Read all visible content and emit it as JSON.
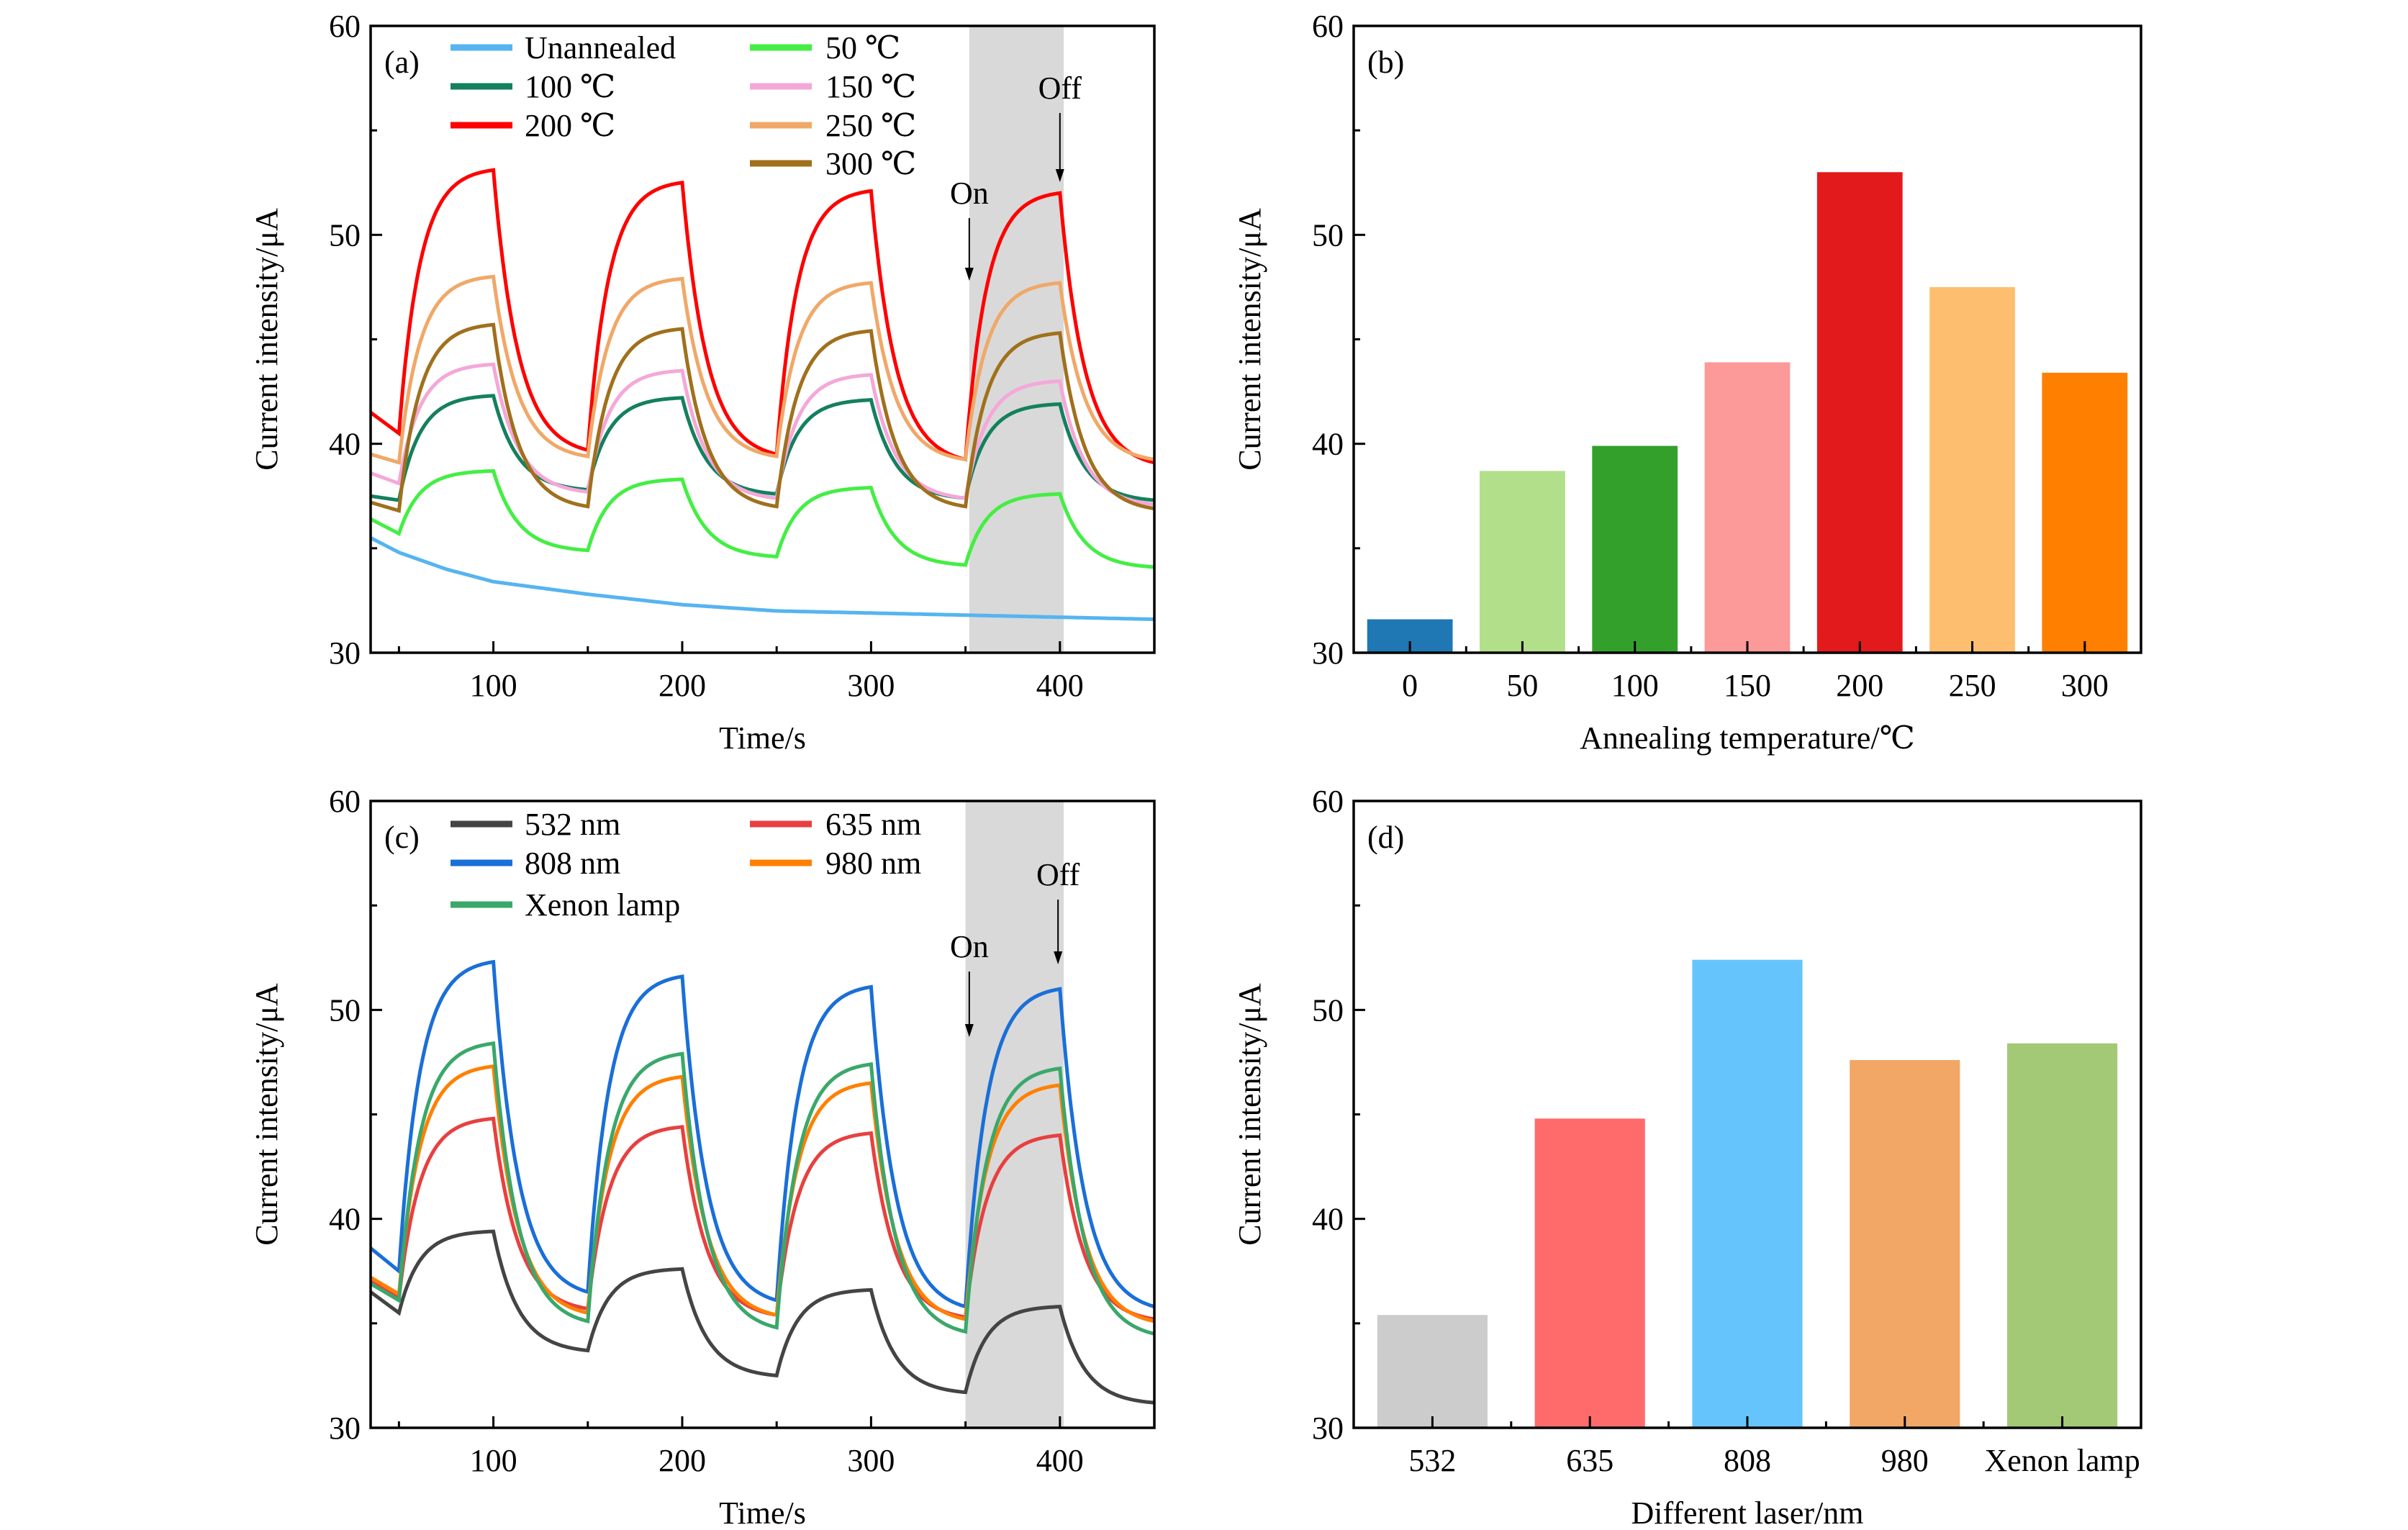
{
  "chart_data": [
    {
      "panel_label": "(a)",
      "type": "line",
      "xlabel": "Time/s",
      "ylabel": "Current intensity/μA",
      "xlim": [
        35,
        450
      ],
      "ylim": [
        30,
        60
      ],
      "xticks": [
        100,
        200,
        300,
        400
      ],
      "yticks": [
        30,
        40,
        50,
        60
      ],
      "grid": false,
      "legend_placement": "top-left, two columns",
      "illuminated_region": [
        352,
        402
      ],
      "illuminated_color": "#d9d9d9",
      "annotations": [
        {
          "text": "On",
          "x": 352
        },
        {
          "text": "Off",
          "x": 400
        }
      ],
      "light_on_times": [
        50,
        150,
        250,
        350
      ],
      "light_off_times": [
        100,
        200,
        300,
        400
      ],
      "series": [
        {
          "name": "Unannealed",
          "color": "#56b4f0",
          "points": [
            [
              35,
              35.5
            ],
            [
              50,
              34.8
            ],
            [
              75,
              34.0
            ],
            [
              100,
              33.4
            ],
            [
              150,
              32.8
            ],
            [
              200,
              32.3
            ],
            [
              250,
              32.0
            ],
            [
              300,
              31.9
            ],
            [
              350,
              31.8
            ],
            [
              400,
              31.7
            ],
            [
              450,
              31.6
            ]
          ]
        },
        {
          "name": "100 ℃",
          "color": "#14805e",
          "start": 37.5,
          "cycles": [
            [
              37.3,
              42.3
            ],
            [
              37.8,
              42.2
            ],
            [
              37.6,
              42.1
            ],
            [
              37.4,
              41.9
            ]
          ],
          "end": 37.3
        },
        {
          "name": "200 ℃",
          "color": "#ff0000",
          "start": 41.5,
          "cycles": [
            [
              40.5,
              53.1
            ],
            [
              39.7,
              52.5
            ],
            [
              39.5,
              52.1
            ],
            [
              39.25,
              52.0
            ]
          ],
          "end": 39.1
        },
        {
          "name": "50 ℃",
          "color": "#44ee44",
          "start": 36.4,
          "cycles": [
            [
              35.7,
              38.7
            ],
            [
              34.9,
              38.3
            ],
            [
              34.6,
              37.9
            ],
            [
              34.2,
              37.6
            ]
          ],
          "end": 34.1
        },
        {
          "name": "150 ℃",
          "color": "#f4a8d8",
          "start": 38.6,
          "cycles": [
            [
              38.1,
              43.8
            ],
            [
              37.7,
              43.5
            ],
            [
              37.4,
              43.3
            ],
            [
              37.4,
              43.0
            ]
          ],
          "end": 37.1
        },
        {
          "name": "250 ℃",
          "color": "#f0a868",
          "start": 39.5,
          "cycles": [
            [
              39.1,
              48.0
            ],
            [
              39.4,
              47.9
            ],
            [
              39.4,
              47.7
            ],
            [
              39.25,
              47.7
            ]
          ],
          "end": 39.25
        },
        {
          "name": "300 ℃",
          "color": "#a0701c",
          "start": 37.2,
          "cycles": [
            [
              36.8,
              45.7
            ],
            [
              37.0,
              45.5
            ],
            [
              37.0,
              45.4
            ],
            [
              37.0,
              45.3
            ]
          ],
          "end": 36.9
        }
      ]
    },
    {
      "panel_label": "(b)",
      "type": "bar",
      "xlabel": "Annealing temperature/℃",
      "ylabel": "Current intensity/μA",
      "ylim": [
        30,
        60
      ],
      "yticks": [
        30,
        40,
        50,
        60
      ],
      "grid": false,
      "categories": [
        "0",
        "50",
        "100",
        "150",
        "200",
        "250",
        "300"
      ],
      "values": [
        31.6,
        38.7,
        39.9,
        43.9,
        53.0,
        47.5,
        43.4
      ],
      "colors": [
        "#1f77b4",
        "#b2df8a",
        "#33a02c",
        "#fb9a99",
        "#e31a1c",
        "#fdbf6f",
        "#ff7f00"
      ]
    },
    {
      "panel_label": "(c)",
      "type": "line",
      "xlabel": "Time/s",
      "ylabel": "Current intensity/μA",
      "xlim": [
        35,
        450
      ],
      "ylim": [
        30,
        60
      ],
      "xticks": [
        100,
        200,
        300,
        400
      ],
      "yticks": [
        30,
        40,
        50,
        60
      ],
      "grid": false,
      "legend_placement": "top-left, two columns",
      "illuminated_region": [
        350,
        402
      ],
      "illuminated_color": "#d9d9d9",
      "annotations": [
        {
          "text": "On",
          "x": 352
        },
        {
          "text": "Off",
          "x": 399
        }
      ],
      "light_on_times": [
        50,
        150,
        250,
        350
      ],
      "light_off_times": [
        100,
        200,
        300,
        400
      ],
      "series": [
        {
          "name": "532 nm",
          "color": "#444444",
          "start": 36.5,
          "cycles": [
            [
              35.5,
              39.4
            ],
            [
              33.7,
              37.6
            ],
            [
              32.5,
              36.6
            ],
            [
              31.7,
              35.8
            ]
          ],
          "end": 31.2
        },
        {
          "name": "635 nm",
          "color": "#e84040",
          "start": 37.0,
          "cycles": [
            [
              36.2,
              44.8
            ],
            [
              35.7,
              44.4
            ],
            [
              35.4,
              44.1
            ],
            [
              35.3,
              44.0
            ]
          ],
          "end": 35.2
        },
        {
          "name": "808 nm",
          "color": "#1a6fd8",
          "start": 38.6,
          "cycles": [
            [
              37.5,
              52.3
            ],
            [
              36.5,
              51.6
            ],
            [
              36.1,
              51.1
            ],
            [
              35.8,
              51.0
            ]
          ],
          "end": 35.8
        },
        {
          "name": "980 nm",
          "color": "#ff8000",
          "start": 37.2,
          "cycles": [
            [
              36.4,
              47.3
            ],
            [
              35.5,
              46.8
            ],
            [
              35.4,
              46.5
            ],
            [
              35.2,
              46.4
            ]
          ],
          "end": 35.1
        },
        {
          "name": "Xenon lamp",
          "color": "#3aa86a",
          "start": 36.9,
          "cycles": [
            [
              36.1,
              48.4
            ],
            [
              35.1,
              47.9
            ],
            [
              34.8,
              47.4
            ],
            [
              34.6,
              47.2
            ]
          ],
          "end": 34.5
        }
      ]
    },
    {
      "panel_label": "(d)",
      "type": "bar",
      "xlabel": "Different laser/nm",
      "ylabel": "Current intensity/μA",
      "ylim": [
        30,
        60
      ],
      "yticks": [
        30,
        40,
        50,
        60
      ],
      "grid": false,
      "categories": [
        "532",
        "635",
        "808",
        "980",
        "Xenon lamp"
      ],
      "values": [
        35.4,
        44.8,
        52.4,
        47.6,
        48.4
      ],
      "colors": [
        "#cccccc",
        "#ff6b6b",
        "#66c4fc",
        "#f2a766",
        "#a3c977"
      ]
    }
  ]
}
